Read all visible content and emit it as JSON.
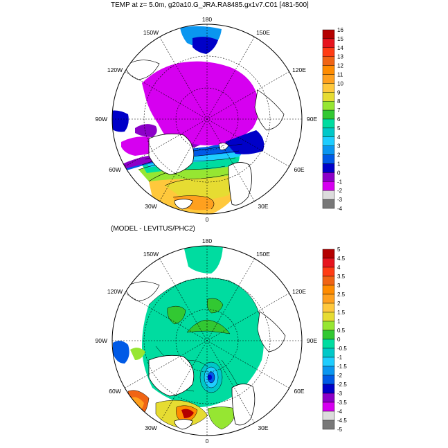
{
  "titles": {
    "top": "TEMP at z=   5.0m, g20a10.G_JRA.RA8485.gx1v7.C01 [481-500]",
    "bottom": "(MODEL - LEVITUS/PHC2)"
  },
  "longitude_labels": {
    "top": "180",
    "bottom": "0",
    "left": "90W",
    "right": "90E",
    "ul1": "150W",
    "ul2": "120W",
    "ur1": "150E",
    "ur2": "120E",
    "ll1": "60W",
    "ll2": "30W",
    "lr1": "60E",
    "lr2": "30E"
  },
  "colorbar_top": {
    "labels": [
      "16",
      "15",
      "14",
      "13",
      "12",
      "11",
      "10",
      "9",
      "8",
      "7",
      "6",
      "5",
      "4",
      "3",
      "2",
      "1",
      "0",
      "-1",
      "-2",
      "-3",
      "-4"
    ],
    "colors": [
      "#b40000",
      "#e6141e",
      "#ff3c14",
      "#f06414",
      "#ff8c00",
      "#ffa01e",
      "#ffc83c",
      "#e6dc32",
      "#96e632",
      "#32c832",
      "#00dca0",
      "#00c8c8",
      "#1ecdff",
      "#0a96f0",
      "#005ae6",
      "#0000c8",
      "#8c00c8",
      "#d600f0",
      "#dcdcdc",
      "#787878"
    ]
  },
  "colorbar_bottom": {
    "labels": [
      "5",
      "4.5",
      "4",
      "3.5",
      "3",
      "2.5",
      "2",
      "1.5",
      "1",
      "0.5",
      "0",
      "-0.5",
      "-1",
      "-1.5",
      "-2",
      "-2.5",
      "-3",
      "-3.5",
      "-4",
      "-4.5",
      "-5"
    ],
    "colors": [
      "#b40000",
      "#e6141e",
      "#ff3c14",
      "#f06414",
      "#ff8c00",
      "#ffa01e",
      "#ffc83c",
      "#e6dc32",
      "#96e632",
      "#32c832",
      "#00dca0",
      "#00c8c8",
      "#1ecdff",
      "#0a96f0",
      "#005ae6",
      "#0000c8",
      "#8c00c8",
      "#d600f0",
      "#dcdcdc",
      "#787878"
    ]
  }
}
